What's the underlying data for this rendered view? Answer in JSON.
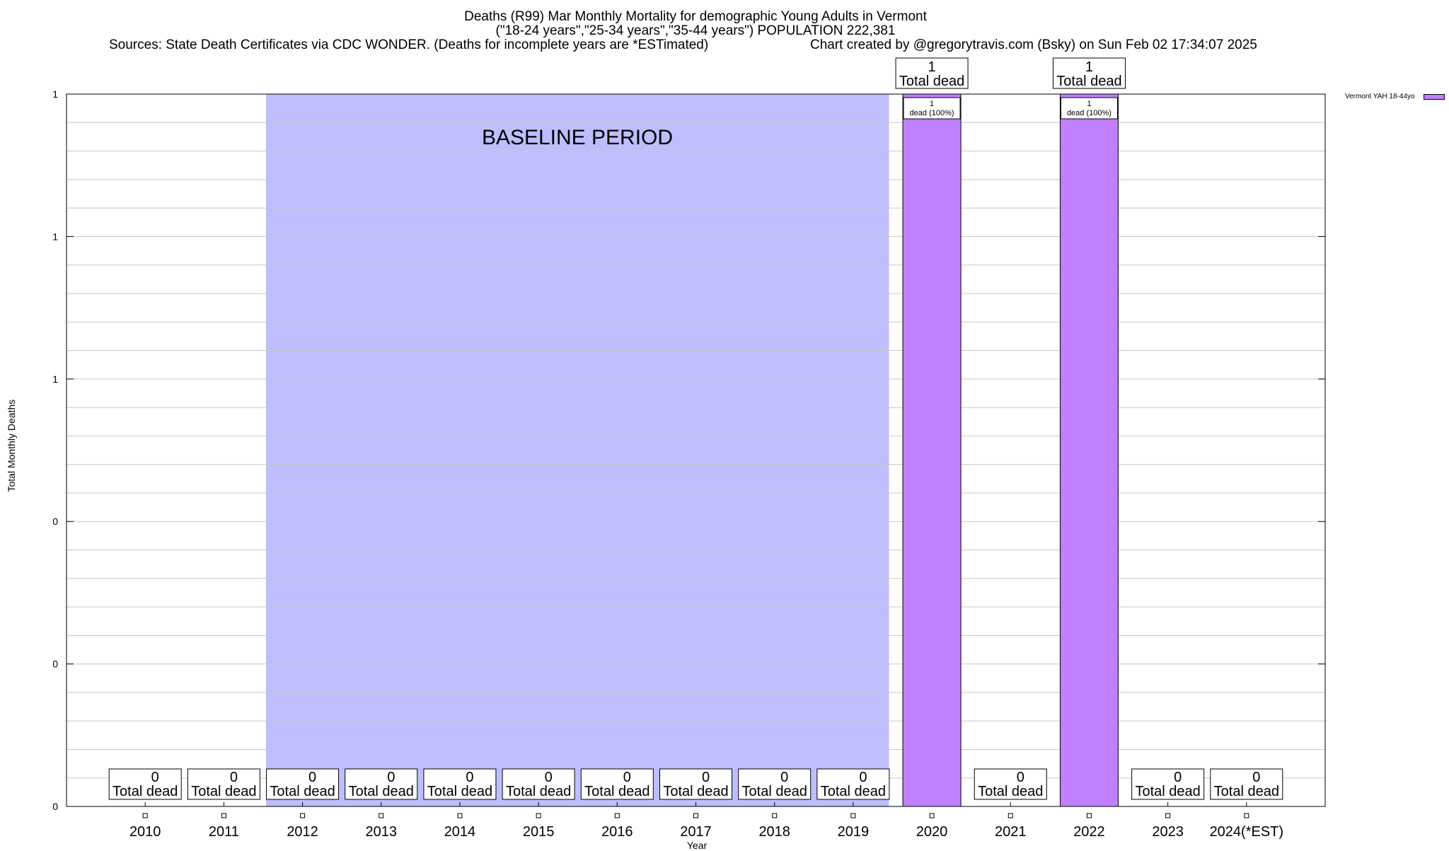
{
  "header": {
    "title_line1": "Deaths (R99) Mar Monthly Mortality for demographic Young Adults in Vermont",
    "title_line2": "(\"18-24 years\",\"25-34 years\",\"35-44 years\") POPULATION 222,381",
    "sources": "Sources: State Death Certificates via CDC WONDER. (Deaths for incomplete years are *ESTimated)",
    "credit": "Chart created by @gregorytravis.com (Bsky) on Sun Feb 02 17:34:07 2025"
  },
  "chart_data": {
    "type": "bar",
    "title": "Deaths (R99) Mar Monthly Mortality for demographic Young Adults in Vermont",
    "xlabel": "Year",
    "ylabel": "Total Monthly Deaths",
    "categories": [
      "2010",
      "2011",
      "2012",
      "2013",
      "2014",
      "2015",
      "2016",
      "2017",
      "2018",
      "2019",
      "2020",
      "2021",
      "2022",
      "2023",
      "2024(*EST)"
    ],
    "series": [
      {
        "name": "Vermont YAH 18-44yo",
        "color": "#c080ff",
        "values": [
          0,
          0,
          0,
          0,
          0,
          0,
          0,
          0,
          0,
          0,
          1,
          0,
          1,
          0,
          0
        ]
      }
    ],
    "ylim": [
      0,
      1
    ],
    "y_tick_values": [
      0,
      0.2,
      0.4,
      0.6,
      0.8,
      1.0
    ],
    "y_tick_labels": [
      "0",
      "0",
      "0",
      "1",
      "1",
      "1"
    ],
    "grid": true,
    "legend_placement": "top-right (outside plot)",
    "total_label_suffix": "Total dead",
    "bar_label_suffix": "dead (100%)",
    "bar_label_prefix": "1",
    "baseline": {
      "label": "BASELINE PERIOD",
      "from": "2012",
      "to": "2019",
      "color": "#bebeff"
    }
  }
}
